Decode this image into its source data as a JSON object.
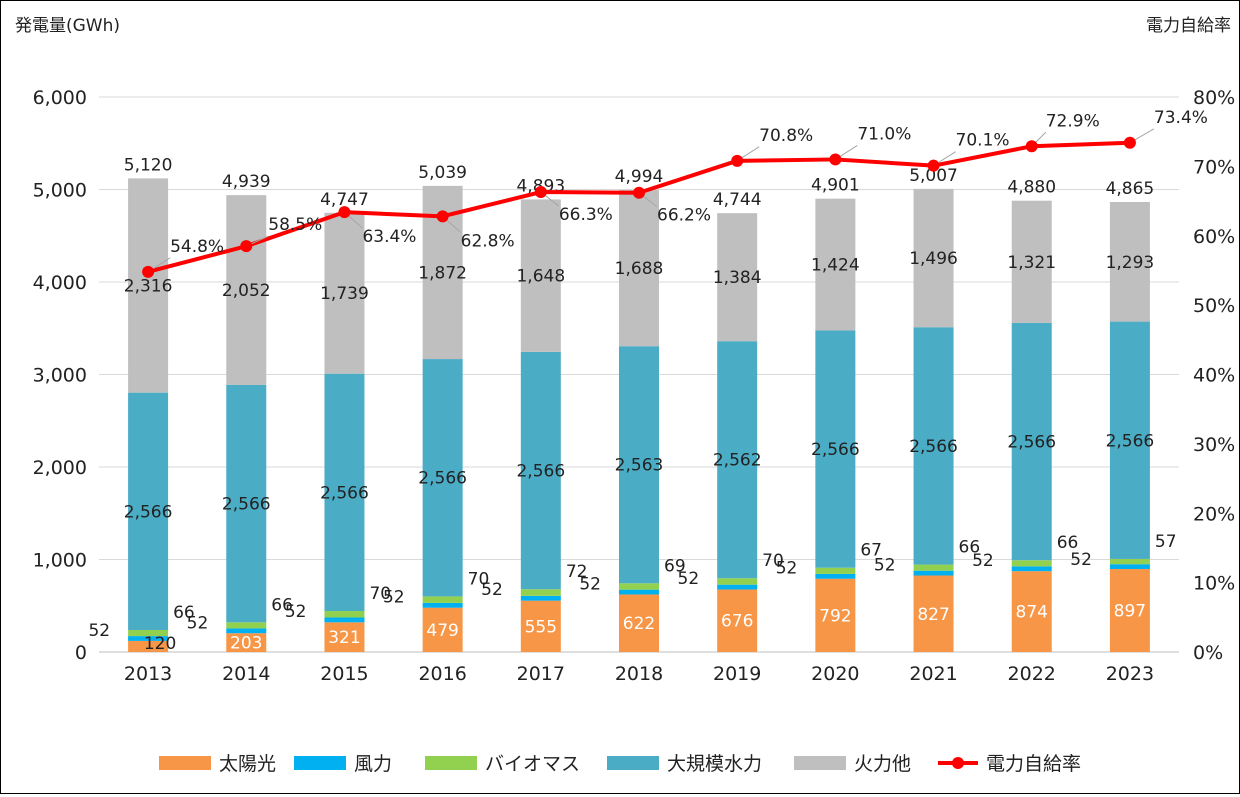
{
  "chart_data": {
    "type": "bar",
    "stacked": true,
    "ylabel": "発電量(GWh)",
    "y2label": "電力自給率",
    "ylim": [
      0,
      6000
    ],
    "y2lim": [
      0,
      80
    ],
    "yticks": [
      "0",
      "1,000",
      "2,000",
      "3,000",
      "4,000",
      "5,000",
      "6,000"
    ],
    "y2ticks": [
      "0%",
      "10%",
      "20%",
      "30%",
      "40%",
      "50%",
      "60%",
      "70%",
      "80%"
    ],
    "categories": [
      "2013",
      "2014",
      "2015",
      "2016",
      "2017",
      "2018",
      "2019",
      "2020",
      "2021",
      "2022",
      "2023"
    ],
    "series": [
      {
        "name": "太陽光",
        "color": "#F79646",
        "values": [
          120,
          203,
          321,
          479,
          555,
          622,
          676,
          792,
          827,
          874,
          897
        ]
      },
      {
        "name": "風力",
        "color": "#00B0F0",
        "values": [
          52,
          52,
          52,
          52,
          52,
          52,
          52,
          52,
          52,
          52,
          52
        ]
      },
      {
        "name": "バイオマス",
        "color": "#92D050",
        "values": [
          66,
          66,
          70,
          70,
          72,
          69,
          70,
          67,
          66,
          66,
          57
        ]
      },
      {
        "name": "大規模水力",
        "color": "#4BACC6",
        "values": [
          2566,
          2566,
          2566,
          2566,
          2566,
          2563,
          2562,
          2566,
          2566,
          2566,
          2566
        ]
      },
      {
        "name": "火力他",
        "color": "#BFBFBF",
        "values": [
          2316,
          2052,
          1739,
          1872,
          1648,
          1688,
          1384,
          1424,
          1496,
          1321,
          1293
        ]
      }
    ],
    "totals": [
      "5,120",
      "4,939",
      "4,747",
      "5,039",
      "4,893",
      "4,994",
      "4,744",
      "4,901",
      "5,007",
      "4,880",
      "4,865"
    ],
    "line": {
      "name": "電力自給率",
      "color": "#FF0000",
      "axis": "y2",
      "values": [
        54.8,
        58.5,
        63.4,
        62.8,
        66.3,
        66.2,
        70.8,
        71.0,
        70.1,
        72.9,
        73.4
      ],
      "labels": [
        "54.8%",
        "58.5%",
        "63.4%",
        "62.8%",
        "66.3%",
        "66.2%",
        "70.8%",
        "71.0%",
        "70.1%",
        "72.9%",
        "73.4%"
      ]
    },
    "legend": [
      "太陽光",
      "風力",
      "バイオマス",
      "大規模水力",
      "火力他",
      "電力自給率"
    ],
    "legend_position": "bottom"
  }
}
